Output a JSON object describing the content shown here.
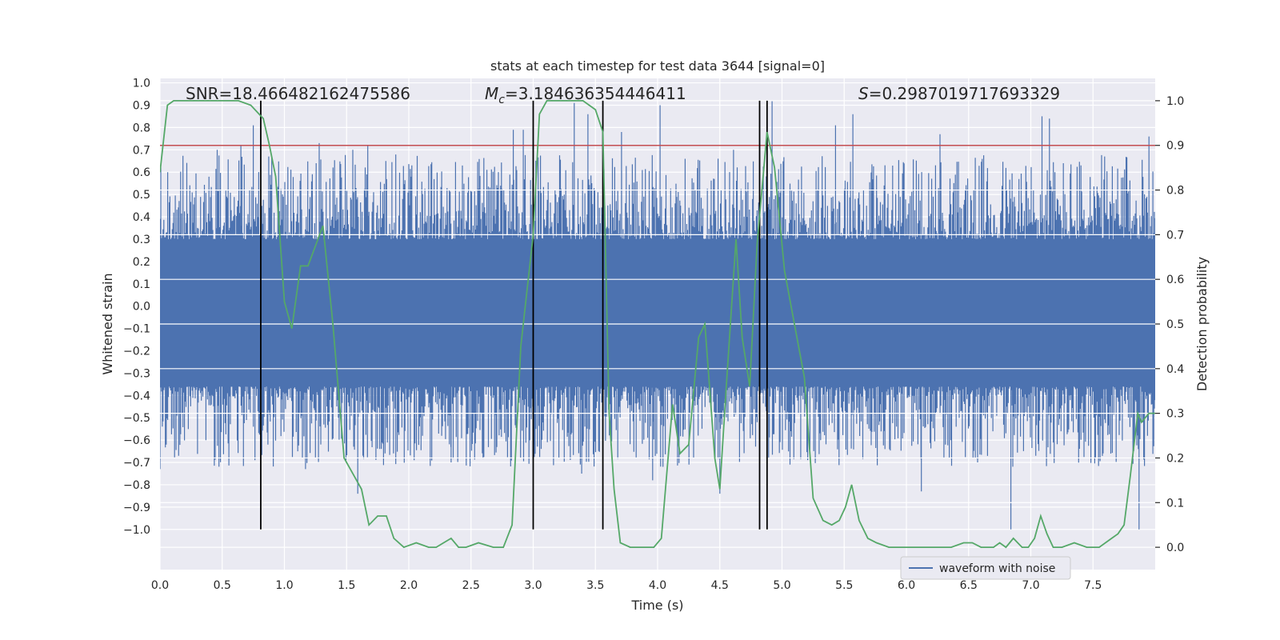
{
  "chart_data": {
    "type": "line",
    "title": "stats at each timestep for test data 3644 [signal=0]",
    "xlabel": "Time (s)",
    "ylabel": "Whitened strain",
    "y2label": "Detection probability",
    "xlim": [
      0.0,
      8.0
    ],
    "ylim": [
      -1.18,
      1.02
    ],
    "y2lim": [
      -0.05,
      1.05
    ],
    "xticks": [
      "0.0",
      "0.5",
      "1.0",
      "1.5",
      "2.0",
      "2.5",
      "3.0",
      "3.5",
      "4.0",
      "4.5",
      "5.0",
      "5.5",
      "6.0",
      "6.5",
      "7.0",
      "7.5"
    ],
    "yticks": [
      "1.0",
      "0.9",
      "0.8",
      "0.7",
      "0.6",
      "0.5",
      "0.4",
      "0.3",
      "0.2",
      "0.1",
      "0.0",
      "−0.1",
      "−0.2",
      "−0.3",
      "−0.4",
      "−0.5",
      "−0.6",
      "−0.7",
      "−0.8",
      "−0.9",
      "−1.0"
    ],
    "y2ticks": [
      "1.0",
      "0.9",
      "0.8",
      "0.7",
      "0.6",
      "0.5",
      "0.4",
      "0.3",
      "0.2",
      "0.1",
      "0.0"
    ],
    "annotations": {
      "snr": "SNR=18.466482162475586",
      "mc_symbol": "M",
      "mc_sub": "c",
      "mc_value": "=3.184636354446411",
      "s_symbol": "S",
      "s_value": "=0.2987019717693329"
    },
    "legend": {
      "label": "waveform with noise",
      "location": "lower-right"
    },
    "threshold": {
      "value": 0.9,
      "color": "#c44e52"
    },
    "vlines": [
      0.81,
      3.0,
      3.56,
      4.82,
      4.88
    ],
    "vline_range": [
      -1.0,
      0.92
    ],
    "waveform": {
      "name": "waveform with noise",
      "color": "#4c72b0",
      "spikes": [
        {
          "t": 0.0,
          "y": -0.73
        },
        {
          "t": 0.05,
          "y": -0.62
        },
        {
          "t": 0.15,
          "y": -0.67
        },
        {
          "t": 0.46,
          "y": 0.7
        },
        {
          "t": 0.65,
          "y": 0.72
        },
        {
          "t": 0.75,
          "y": 0.81
        },
        {
          "t": 1.17,
          "y": -0.73
        },
        {
          "t": 1.28,
          "y": 0.73
        },
        {
          "t": 1.55,
          "y": 0.7
        },
        {
          "t": 1.59,
          "y": -0.84
        },
        {
          "t": 1.67,
          "y": 0.72
        },
        {
          "t": 2.34,
          "y": -0.7
        },
        {
          "t": 2.84,
          "y": 0.79
        },
        {
          "t": 2.92,
          "y": 0.79
        },
        {
          "t": 3.33,
          "y": 0.91
        },
        {
          "t": 3.39,
          "y": -0.75
        },
        {
          "t": 3.44,
          "y": 0.86
        },
        {
          "t": 3.71,
          "y": 0.78
        },
        {
          "t": 3.96,
          "y": -0.78
        },
        {
          "t": 4.02,
          "y": 0.9
        },
        {
          "t": 4.5,
          "y": -0.84
        },
        {
          "t": 4.61,
          "y": 0.7
        },
        {
          "t": 4.92,
          "y": 0.92
        },
        {
          "t": 5.43,
          "y": 0.81
        },
        {
          "t": 5.57,
          "y": 0.86
        },
        {
          "t": 6.12,
          "y": -0.83
        },
        {
          "t": 6.27,
          "y": 0.77
        },
        {
          "t": 6.84,
          "y": -1.0
        },
        {
          "t": 7.09,
          "y": 0.85
        },
        {
          "t": 7.15,
          "y": 0.84
        },
        {
          "t": 7.87,
          "y": -1.0
        },
        {
          "t": 7.95,
          "y": 0.76
        }
      ]
    },
    "detection_probability": {
      "color": "#55a868",
      "x": [
        0.0,
        0.06,
        0.11,
        0.5,
        0.63,
        0.73,
        0.83,
        0.88,
        0.93,
        1.0,
        1.06,
        1.13,
        1.19,
        1.31,
        1.39,
        1.48,
        1.56,
        1.62,
        1.68,
        1.75,
        1.82,
        1.88,
        1.96,
        2.06,
        2.16,
        2.22,
        2.28,
        2.34,
        2.4,
        2.46,
        2.56,
        2.68,
        2.76,
        2.83,
        2.9,
        3.0,
        3.05,
        3.11,
        3.17,
        3.28,
        3.4,
        3.5,
        3.56,
        3.61,
        3.65,
        3.7,
        3.78,
        3.85,
        3.97,
        4.03,
        4.12,
        4.18,
        4.25,
        4.33,
        4.38,
        4.46,
        4.5,
        4.55,
        4.63,
        4.68,
        4.74,
        4.8,
        4.88,
        4.94,
        5.02,
        5.08,
        5.18,
        5.25,
        5.33,
        5.4,
        5.46,
        5.51,
        5.56,
        5.62,
        5.69,
        5.76,
        5.86,
        5.96,
        6.06,
        6.16,
        6.26,
        6.36,
        6.46,
        6.53,
        6.6,
        6.7,
        6.75,
        6.8,
        6.86,
        6.93,
        6.98,
        7.03,
        7.08,
        7.13,
        7.18,
        7.25,
        7.35,
        7.45,
        7.55,
        7.65,
        7.7,
        7.75,
        7.8,
        7.86,
        7.89,
        7.95,
        8.0
      ],
      "y": [
        0.84,
        0.99,
        1.0,
        1.0,
        1.0,
        0.99,
        0.96,
        0.9,
        0.83,
        0.55,
        0.49,
        0.63,
        0.63,
        0.72,
        0.5,
        0.2,
        0.16,
        0.13,
        0.05,
        0.07,
        0.07,
        0.02,
        0.0,
        0.01,
        0.0,
        0.0,
        0.01,
        0.02,
        0.0,
        0.0,
        0.01,
        0.0,
        0.0,
        0.05,
        0.45,
        0.7,
        0.97,
        1.0,
        1.0,
        1.0,
        1.0,
        0.98,
        0.93,
        0.3,
        0.13,
        0.01,
        0.0,
        0.0,
        0.0,
        0.02,
        0.32,
        0.21,
        0.23,
        0.47,
        0.5,
        0.2,
        0.13,
        0.35,
        0.69,
        0.47,
        0.36,
        0.68,
        0.93,
        0.85,
        0.62,
        0.53,
        0.38,
        0.11,
        0.06,
        0.05,
        0.06,
        0.09,
        0.14,
        0.06,
        0.02,
        0.01,
        0.0,
        0.0,
        0.0,
        0.0,
        0.0,
        0.0,
        0.01,
        0.01,
        0.0,
        0.0,
        0.01,
        0.0,
        0.02,
        0.0,
        0.0,
        0.02,
        0.07,
        0.03,
        0.0,
        0.0,
        0.01,
        0.0,
        0.0,
        0.02,
        0.03,
        0.05,
        0.16,
        0.3,
        0.28,
        0.3,
        0.3
      ]
    }
  }
}
